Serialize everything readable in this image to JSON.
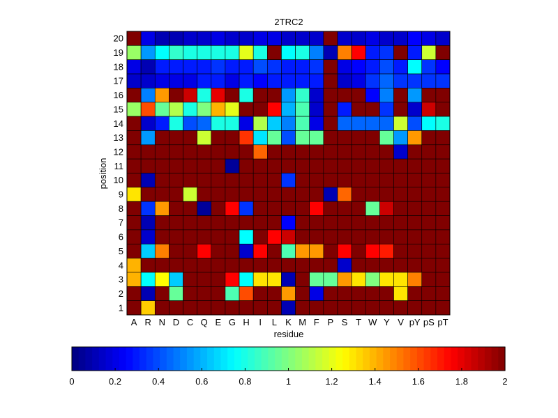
{
  "chart_data": {
    "type": "heatmap",
    "title": "2TRC2",
    "xlabel": "residue",
    "ylabel": "position",
    "x_categories": [
      "A",
      "R",
      "N",
      "D",
      "C",
      "Q",
      "E",
      "G",
      "H",
      "I",
      "L",
      "K",
      "M",
      "F",
      "P",
      "S",
      "T",
      "W",
      "Y",
      "V",
      "pY",
      "pS",
      "pT"
    ],
    "y_categories": [
      "1",
      "2",
      "3",
      "4",
      "5",
      "6",
      "7",
      "8",
      "9",
      "10",
      "11",
      "12",
      "13",
      "14",
      "15",
      "16",
      "17",
      "18",
      "19",
      "20"
    ],
    "colormap": "jet",
    "clim": [
      0,
      2
    ],
    "colorbar_ticks": [
      "0",
      "0.2",
      "0.4",
      "0.6",
      "0.8",
      "1",
      "1.2",
      "1.4",
      "1.6",
      "1.8",
      "2"
    ],
    "rows_top_to_bottom": [
      [
        2.0,
        0.2,
        0.1,
        0.1,
        0.15,
        0.15,
        0.2,
        0.15,
        0.15,
        0.2,
        0.2,
        0.15,
        0.15,
        0.15,
        2.0,
        0.15,
        0.15,
        0.2,
        0.15,
        0.15,
        0.25,
        0.2,
        0.15
      ],
      [
        1.05,
        0.55,
        0.75,
        0.85,
        0.8,
        0.8,
        0.8,
        0.8,
        1.2,
        0.8,
        2.0,
        0.75,
        0.8,
        0.5,
        0.1,
        1.5,
        1.75,
        0.3,
        0.35,
        2.0,
        0.3,
        1.15,
        2.0
      ],
      [
        0.2,
        0.1,
        0.3,
        0.3,
        0.3,
        0.3,
        0.35,
        0.3,
        0.3,
        0.4,
        0.35,
        0.3,
        0.3,
        0.35,
        2.0,
        0.2,
        0.25,
        0.3,
        0.4,
        0.3,
        0.75,
        0.35,
        0.25
      ],
      [
        0.15,
        0.15,
        0.2,
        0.2,
        0.2,
        0.3,
        0.3,
        0.2,
        0.3,
        0.25,
        0.3,
        0.3,
        0.3,
        0.3,
        2.0,
        0.15,
        0.2,
        0.35,
        0.45,
        0.35,
        0.35,
        0.35,
        0.35
      ],
      [
        2.0,
        0.5,
        1.45,
        2.0,
        1.85,
        0.8,
        1.8,
        2.0,
        0.8,
        2.0,
        2.0,
        0.55,
        0.85,
        0.15,
        2.0,
        2.0,
        2.0,
        0.25,
        0.5,
        2.0,
        0.55,
        2.0,
        2.0
      ],
      [
        1.05,
        1.6,
        0.95,
        1.1,
        0.8,
        1.0,
        1.4,
        1.2,
        2.0,
        2.0,
        1.75,
        0.6,
        0.9,
        0.15,
        2.0,
        0.3,
        2.0,
        2.0,
        0.35,
        2.0,
        0.15,
        1.85,
        2.0
      ],
      [
        2.0,
        0.15,
        0.3,
        0.8,
        0.4,
        0.45,
        0.8,
        0.8,
        0.2,
        1.1,
        0.65,
        0.5,
        0.9,
        0.2,
        2.0,
        0.45,
        0.45,
        0.45,
        0.45,
        1.15,
        0.4,
        0.75,
        0.8
      ],
      [
        2.0,
        0.55,
        2.0,
        2.0,
        2.0,
        1.15,
        2.0,
        2.0,
        1.65,
        0.7,
        0.95,
        0.4,
        0.95,
        0.95,
        2.0,
        2.0,
        2.0,
        2.0,
        0.95,
        0.55,
        1.45,
        2.0,
        2.0
      ],
      [
        2.0,
        2.0,
        2.0,
        2.0,
        2.0,
        2.0,
        2.0,
        2.0,
        2.0,
        1.55,
        2.0,
        2.0,
        2.0,
        2.0,
        2.0,
        2.0,
        2.0,
        2.0,
        2.0,
        0.15,
        2.0,
        2.0,
        2.0
      ],
      [
        2.0,
        2.0,
        2.0,
        2.0,
        2.0,
        2.0,
        2.0,
        0.05,
        2.0,
        2.0,
        2.0,
        2.0,
        2.0,
        2.0,
        2.0,
        2.0,
        2.0,
        2.0,
        2.0,
        2.0,
        2.0,
        2.0,
        2.0
      ],
      [
        2.0,
        0.1,
        2.0,
        2.0,
        2.0,
        2.0,
        2.0,
        2.0,
        2.0,
        2.0,
        2.0,
        0.35,
        2.0,
        2.0,
        2.0,
        2.0,
        2.0,
        2.0,
        2.0,
        2.0,
        2.0,
        2.0,
        2.0
      ],
      [
        1.3,
        2.0,
        2.0,
        2.0,
        1.15,
        2.0,
        2.0,
        2.0,
        2.0,
        2.0,
        2.0,
        2.0,
        2.0,
        2.0,
        0.1,
        1.55,
        2.0,
        2.0,
        2.0,
        2.0,
        2.0,
        2.0,
        2.0
      ],
      [
        2.0,
        0.35,
        1.45,
        2.0,
        2.0,
        0.05,
        2.0,
        1.75,
        0.35,
        2.0,
        2.0,
        2.0,
        2.0,
        1.75,
        2.0,
        2.0,
        2.0,
        0.95,
        1.85,
        2.0,
        2.0,
        2.0,
        2.0
      ],
      [
        2.0,
        0.1,
        2.0,
        2.0,
        2.0,
        2.0,
        2.0,
        2.0,
        2.0,
        2.0,
        2.0,
        0.25,
        2.0,
        2.0,
        2.0,
        2.0,
        2.0,
        2.0,
        2.0,
        2.0,
        2.0,
        2.0,
        2.0
      ],
      [
        2.0,
        0.15,
        2.0,
        2.0,
        2.0,
        2.0,
        2.0,
        2.0,
        0.75,
        2.0,
        1.75,
        1.85,
        2.0,
        2.0,
        2.0,
        2.0,
        2.0,
        2.0,
        2.0,
        2.0,
        2.0,
        2.0,
        2.0
      ],
      [
        2.0,
        0.65,
        1.5,
        2.0,
        2.0,
        1.75,
        2.0,
        2.0,
        0.15,
        1.75,
        2.0,
        0.9,
        1.45,
        1.45,
        2.0,
        1.75,
        2.0,
        1.75,
        1.7,
        2.0,
        2.0,
        2.0,
        2.0
      ],
      [
        1.4,
        2.0,
        2.0,
        2.0,
        2.0,
        2.0,
        2.0,
        2.0,
        2.0,
        2.0,
        2.0,
        2.0,
        2.0,
        2.0,
        2.0,
        0.15,
        2.0,
        2.0,
        2.0,
        2.0,
        2.0,
        2.0,
        2.0
      ],
      [
        1.4,
        0.75,
        1.25,
        0.65,
        2.0,
        2.0,
        2.0,
        1.75,
        0.75,
        1.3,
        1.3,
        0.1,
        2.0,
        0.95,
        0.95,
        1.45,
        1.3,
        1.0,
        1.3,
        1.3,
        1.5,
        2.0,
        2.0
      ],
      [
        2.0,
        0.1,
        2.0,
        0.95,
        2.0,
        2.0,
        2.0,
        0.9,
        1.6,
        2.0,
        2.0,
        1.45,
        2.0,
        0.2,
        2.0,
        2.0,
        2.0,
        2.0,
        2.0,
        1.3,
        2.0,
        2.0,
        2.0
      ],
      [
        2.0,
        1.35,
        2.0,
        2.0,
        2.0,
        2.0,
        2.0,
        2.0,
        2.0,
        2.0,
        2.0,
        0.1,
        2.0,
        2.0,
        2.0,
        2.0,
        2.0,
        2.0,
        2.0,
        2.0,
        2.0,
        2.0,
        2.0
      ]
    ]
  }
}
